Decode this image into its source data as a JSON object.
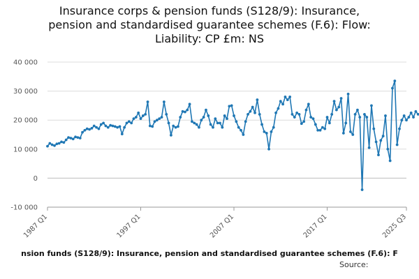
{
  "title_lines": [
    "Insurance corps & pension funds (S128/9): Insurance,",
    "pension and standardised guarantee schemes (F.6): Flow:",
    "Liability: CP £m: NS"
  ],
  "legend_text": "nsion funds (S128/9): Insurance, pension and standardised guarantee schemes (F.6): F",
  "source_text": "Source:",
  "chart_data": {
    "type": "line",
    "title": "Insurance corps & pension funds (S128/9): Insurance, pension and standardised guarantee schemes (F.6): Flow: Liability: CP £m: NS",
    "y_tick_labels": [
      "40 000",
      "30 000",
      "20 000",
      "10 000",
      "0",
      "-10 000"
    ],
    "y_ticks": [
      40000,
      30000,
      20000,
      10000,
      0,
      -10000
    ],
    "ylim": [
      -10000,
      40000
    ],
    "x_tick_labels": [
      "1987 Q1",
      "1997 Q1",
      "2007 Q1",
      "2017 Q1",
      "2025 Q3"
    ],
    "x_tick_quarters": [
      "1987 Q1",
      "1997 Q1",
      "2007 Q1",
      "2017 Q1",
      "2025 Q3"
    ],
    "grid": true,
    "line_color": "#1f77b4",
    "series": [
      {
        "start": "1987 Q1",
        "values": [
          11000,
          12000,
          11500,
          11200,
          11800,
          12000,
          12500,
          12300,
          13200,
          14000,
          13800,
          13500,
          14200,
          14000,
          13800,
          15800,
          16500,
          17000,
          16800,
          17200,
          18000,
          17500,
          17000,
          18500,
          19000,
          18000,
          17500,
          18200,
          18000,
          17800,
          17500,
          17800,
          15200,
          17500,
          19000,
          19500,
          19000,
          20500,
          21000,
          22500,
          20500,
          21500,
          22000,
          26300,
          18000,
          17800,
          19500,
          20000,
          20500,
          21000,
          26300,
          22000,
          19000,
          14800,
          18000,
          17500,
          17800,
          21000,
          23000,
          22800,
          23500,
          25500,
          19500,
          19000,
          18500,
          17500,
          20000,
          21000,
          23500,
          21500,
          18500,
          17500,
          20500,
          19000,
          19000,
          17500,
          21500,
          20500,
          24800,
          25000,
          21500,
          19500,
          17500,
          16500,
          15000,
          19500,
          22000,
          23000,
          24500,
          22500,
          27000,
          22000,
          18500,
          16000,
          15500,
          10000,
          16000,
          17500,
          22500,
          24000,
          26500,
          25500,
          28000,
          27000,
          28000,
          22000,
          21000,
          22500,
          22000,
          18800,
          19500,
          23500,
          25500,
          21000,
          20500,
          18500,
          16500,
          16500,
          17500,
          17000,
          21000,
          19000,
          22000,
          26500,
          23500,
          24500,
          27500,
          15500,
          19000,
          29000,
          16000,
          15000,
          22000,
          23500,
          21000,
          -4000,
          22000,
          21000,
          10500,
          25000,
          17000,
          12500,
          8000,
          13000,
          14500,
          21500,
          10000,
          6000,
          31000,
          33500,
          11500,
          17000,
          20000,
          21500,
          20000,
          21000,
          22500,
          21000,
          23000,
          22000,
          22500,
          23500
        ]
      }
    ]
  }
}
